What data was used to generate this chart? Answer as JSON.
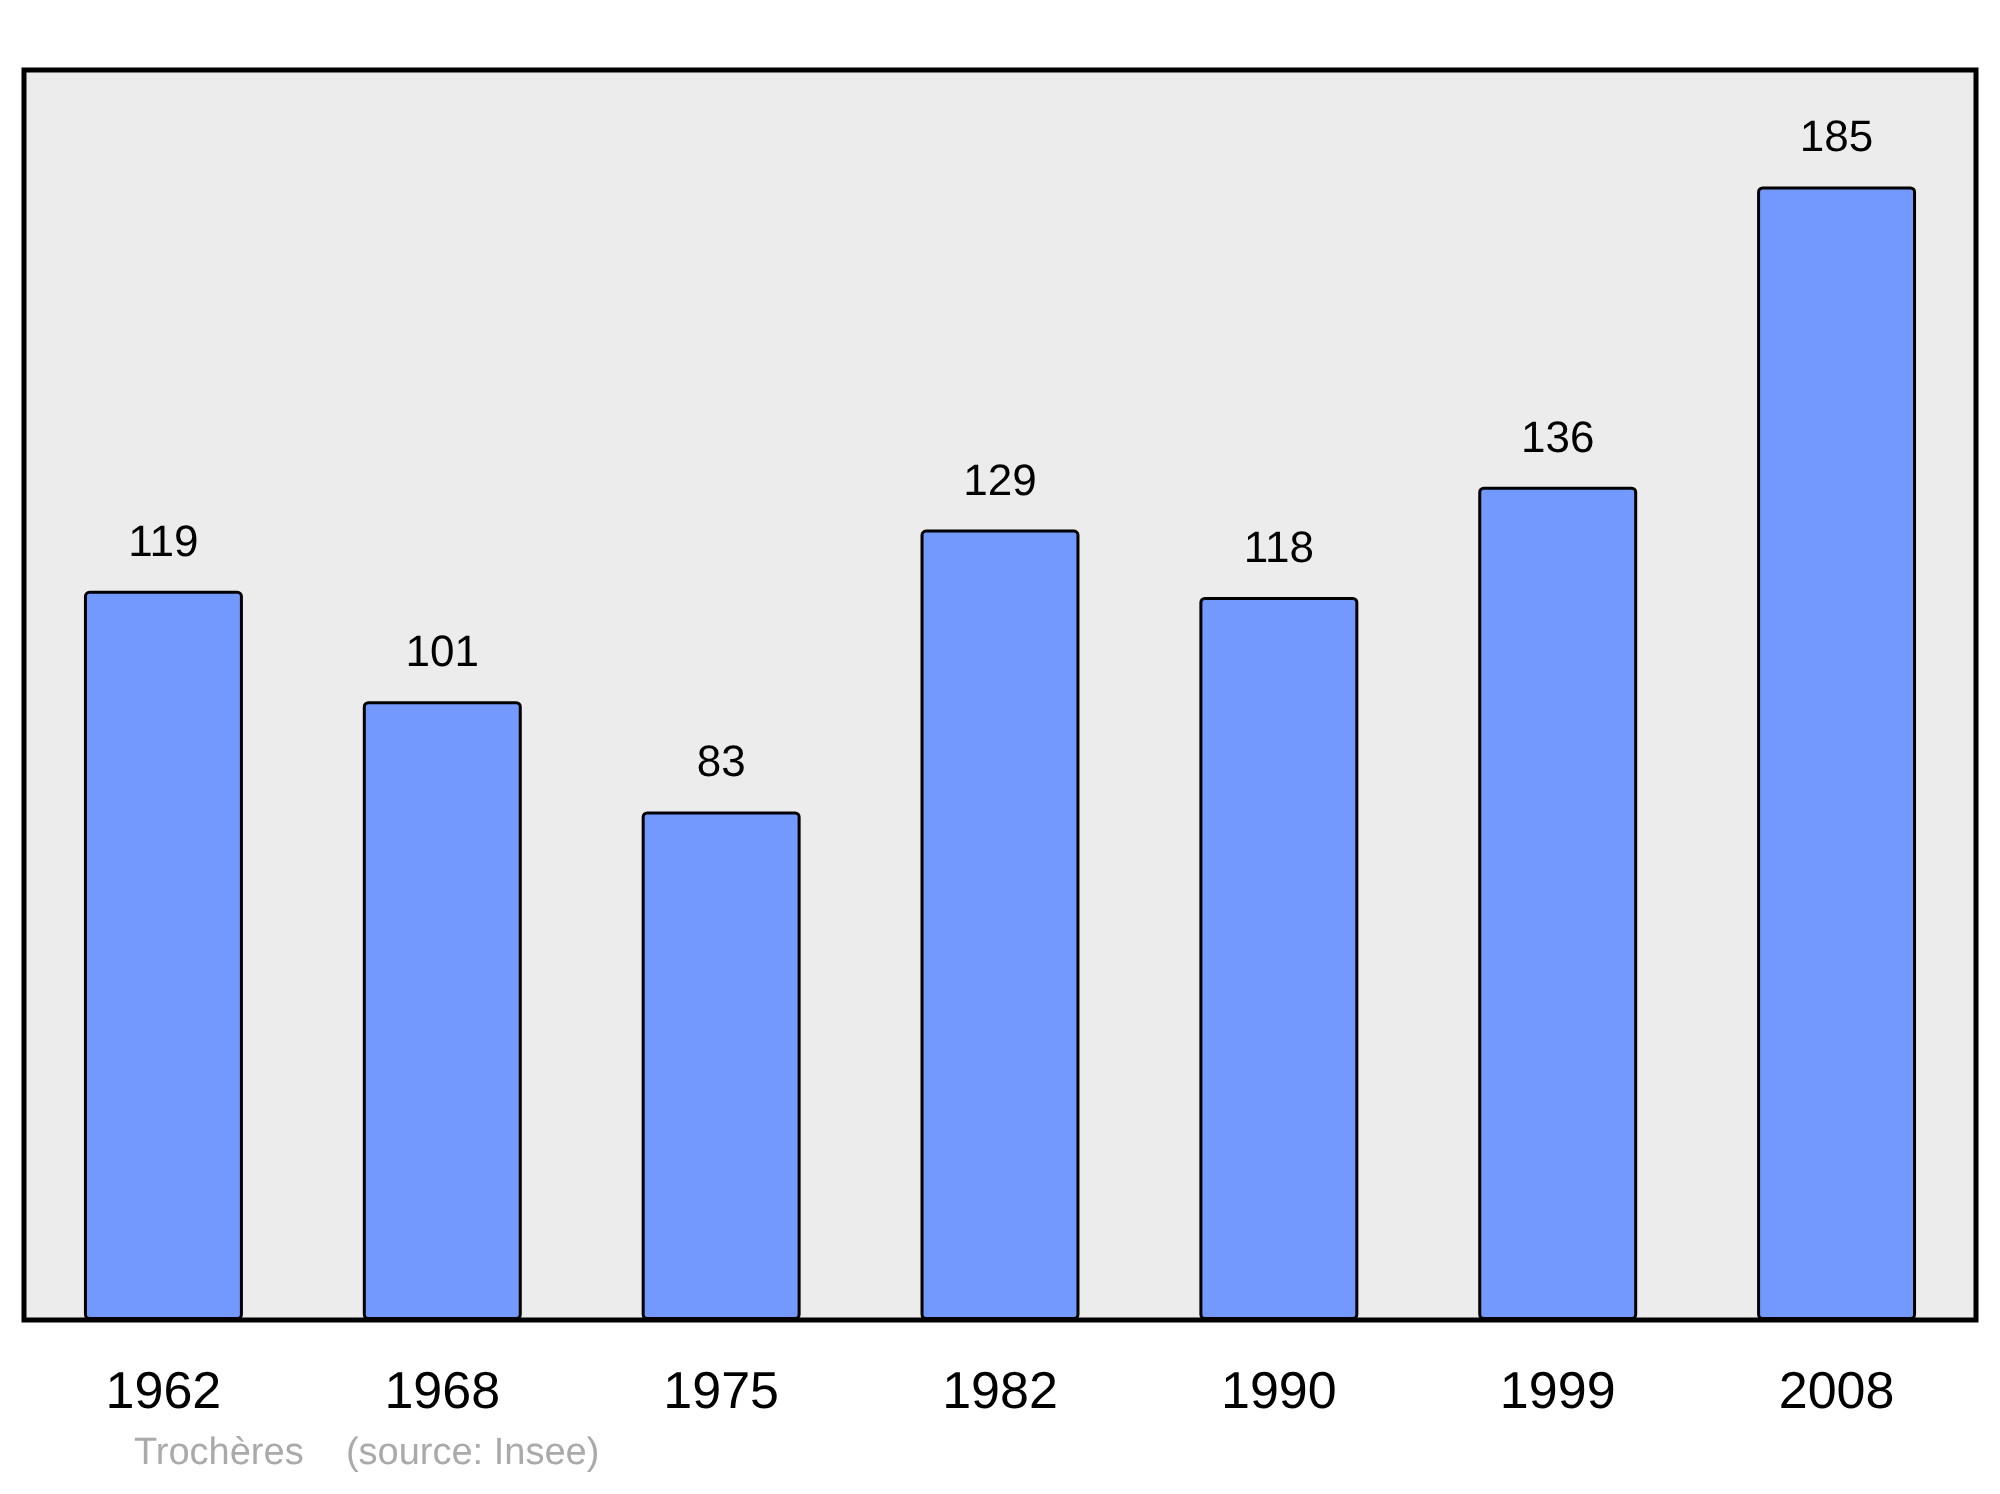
{
  "chart_data": {
    "type": "bar",
    "categories": [
      "1962",
      "1968",
      "1975",
      "1982",
      "1990",
      "1999",
      "2008"
    ],
    "values": [
      119,
      101,
      83,
      129,
      118,
      136,
      185
    ],
    "color": "#7399ff",
    "ylim": [
      0,
      204
    ],
    "data_labels": true,
    "annotations": [
      "Trochères    (source: Insee)"
    ]
  }
}
